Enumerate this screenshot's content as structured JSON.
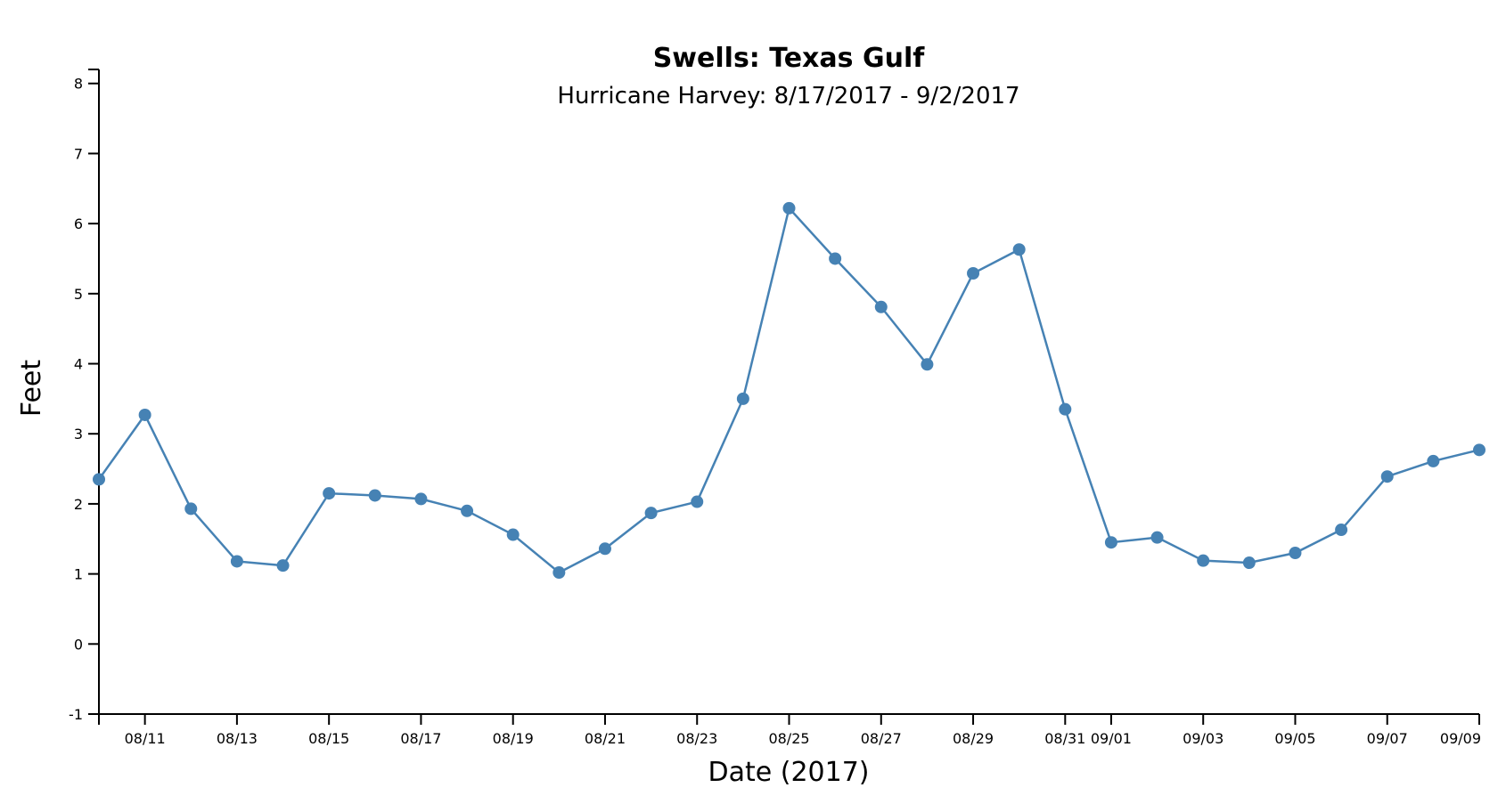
{
  "chart_data": {
    "type": "line",
    "title": "Swells: Texas Gulf",
    "subtitle": "Hurricane Harvey: 8/17/2017 - 9/2/2017",
    "xlabel": "Date (2017)",
    "ylabel": "Feet",
    "ylim": [
      -1,
      8.2
    ],
    "xlim": [
      "2017-08-10",
      "2017-09-09"
    ],
    "grid": false,
    "y_ticks": [
      -1,
      0,
      1,
      2,
      3,
      4,
      5,
      6,
      7,
      8
    ],
    "x_ticks": [
      {
        "date": "2017-08-11",
        "label": "08/11"
      },
      {
        "date": "2017-08-13",
        "label": "08/13"
      },
      {
        "date": "2017-08-15",
        "label": "08/15"
      },
      {
        "date": "2017-08-17",
        "label": "08/17"
      },
      {
        "date": "2017-08-19",
        "label": "08/19"
      },
      {
        "date": "2017-08-21",
        "label": "08/21"
      },
      {
        "date": "2017-08-23",
        "label": "08/23"
      },
      {
        "date": "2017-08-25",
        "label": "08/25"
      },
      {
        "date": "2017-08-27",
        "label": "08/27"
      },
      {
        "date": "2017-08-29",
        "label": "08/29"
      },
      {
        "date": "2017-08-31",
        "label": "08/31"
      },
      {
        "date": "2017-09-01",
        "label": "09/01"
      },
      {
        "date": "2017-09-03",
        "label": "09/03"
      },
      {
        "date": "2017-09-05",
        "label": "09/05"
      },
      {
        "date": "2017-09-07",
        "label": "09/07"
      },
      {
        "date": "2017-09-09",
        "label": "09/09"
      }
    ],
    "series": [
      {
        "color": "#4682b4",
        "points": [
          {
            "x": "2017-08-10",
            "y": 2.35
          },
          {
            "x": "2017-08-11",
            "y": 3.27
          },
          {
            "x": "2017-08-12",
            "y": 1.93
          },
          {
            "x": "2017-08-13",
            "y": 1.18
          },
          {
            "x": "2017-08-14",
            "y": 1.12
          },
          {
            "x": "2017-08-15",
            "y": 2.15
          },
          {
            "x": "2017-08-16",
            "y": 2.12
          },
          {
            "x": "2017-08-17",
            "y": 2.07
          },
          {
            "x": "2017-08-18",
            "y": 1.9
          },
          {
            "x": "2017-08-19",
            "y": 1.56
          },
          {
            "x": "2017-08-20",
            "y": 1.02
          },
          {
            "x": "2017-08-21",
            "y": 1.36
          },
          {
            "x": "2017-08-22",
            "y": 1.87
          },
          {
            "x": "2017-08-23",
            "y": 2.03
          },
          {
            "x": "2017-08-24",
            "y": 3.5
          },
          {
            "x": "2017-08-25",
            "y": 6.22
          },
          {
            "x": "2017-08-26",
            "y": 5.5
          },
          {
            "x": "2017-08-27",
            "y": 4.81
          },
          {
            "x": "2017-08-28",
            "y": 3.99
          },
          {
            "x": "2017-08-29",
            "y": 5.29
          },
          {
            "x": "2017-08-30",
            "y": 5.63
          },
          {
            "x": "2017-08-31",
            "y": 3.35
          },
          {
            "x": "2017-09-01",
            "y": 1.45
          },
          {
            "x": "2017-09-02",
            "y": 1.52
          },
          {
            "x": "2017-09-03",
            "y": 1.19
          },
          {
            "x": "2017-09-04",
            "y": 1.16
          },
          {
            "x": "2017-09-05",
            "y": 1.3
          },
          {
            "x": "2017-09-06",
            "y": 1.63
          },
          {
            "x": "2017-09-07",
            "y": 2.39
          },
          {
            "x": "2017-09-08",
            "y": 2.61
          },
          {
            "x": "2017-09-09",
            "y": 2.77
          }
        ]
      }
    ]
  }
}
